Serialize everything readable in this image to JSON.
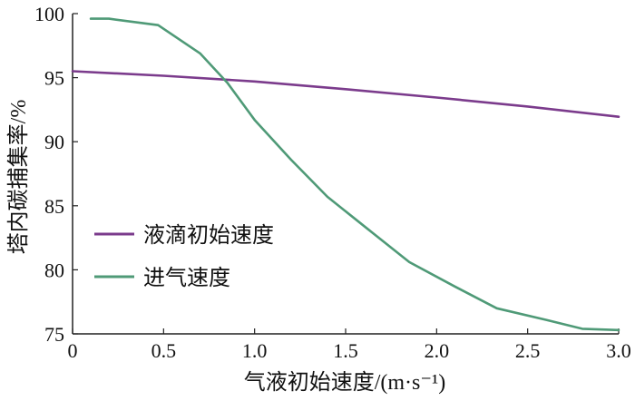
{
  "chart_data": {
    "type": "line",
    "title": "",
    "xlabel": "气液初始速度/(m·s⁻¹)",
    "ylabel": "塔内碳捕集率/%",
    "xlim": [
      0.0,
      3.0
    ],
    "ylim": [
      75,
      100
    ],
    "xticks": [
      0.0,
      0.5,
      1.0,
      1.5,
      2.0,
      2.5,
      3.0
    ],
    "xtick_labels": [
      "0",
      "0.5",
      "1.0",
      "1.5",
      "2.0",
      "2.5",
      "3.0"
    ],
    "yticks": [
      75,
      80,
      85,
      90,
      95,
      100
    ],
    "ytick_labels": [
      "75",
      "80",
      "85",
      "90",
      "95",
      "100"
    ],
    "grid": false,
    "legend_position": "lower-left",
    "series": [
      {
        "name": "液滴初始速度",
        "color": "#7b3b8c",
        "x": [
          0.0,
          0.5,
          1.0,
          1.5,
          2.0,
          2.5,
          3.0
        ],
        "y": [
          95.5,
          95.15,
          94.7,
          94.1,
          93.45,
          92.75,
          91.95
        ]
      },
      {
        "name": "进气速度",
        "color": "#4f9a77",
        "x": [
          0.1,
          0.2,
          0.47,
          0.7,
          0.85,
          1.0,
          1.2,
          1.4,
          1.62,
          1.85,
          2.1,
          2.33,
          2.6,
          2.8,
          3.0
        ],
        "y": [
          99.6,
          99.6,
          99.1,
          96.9,
          94.6,
          91.7,
          88.6,
          85.7,
          83.2,
          80.6,
          78.7,
          77.0,
          76.1,
          75.4,
          75.3
        ]
      }
    ]
  }
}
